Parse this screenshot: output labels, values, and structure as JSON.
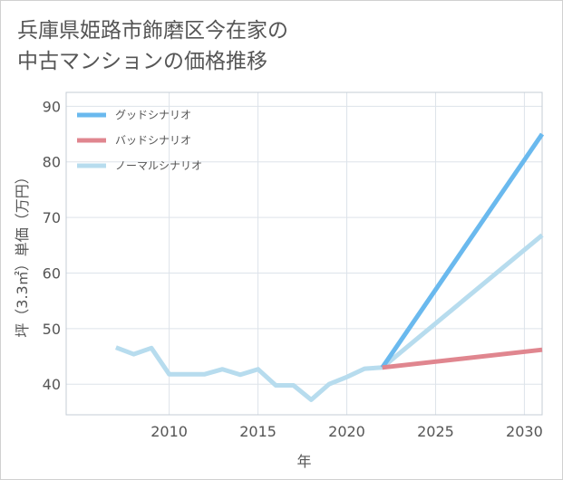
{
  "title_lines": [
    "兵庫県姫路市飾磨区今在家の",
    "中古マンションの価格推移"
  ],
  "chart_data": {
    "type": "line",
    "title": "兵庫県姫路市飾磨区今在家の中古マンションの価格推移",
    "xlabel": "年",
    "ylabel": "坪（3.3㎡）単価（万円）",
    "xlim": [
      2004.2,
      2031.0
    ],
    "ylim": [
      34.5,
      92.5
    ],
    "xticks": [
      2010,
      2015,
      2020,
      2025,
      2030
    ],
    "yticks": [
      40,
      50,
      60,
      70,
      80,
      90
    ],
    "grid": true,
    "legend_position": "top-left",
    "series": [
      {
        "name": "グッドシナリオ",
        "color": "#6ab9ee",
        "x": [
          2022,
          2031
        ],
        "values": [
          43.0,
          85.0
        ]
      },
      {
        "name": "バッドシナリオ",
        "color": "#e0868f",
        "x": [
          2022,
          2031
        ],
        "values": [
          43.0,
          46.2
        ]
      },
      {
        "name": "ノーマルシナリオ",
        "color": "#b7dcee",
        "x": [
          2007,
          2008,
          2009,
          2010,
          2011,
          2012,
          2013,
          2014,
          2015,
          2016,
          2017,
          2018,
          2019,
          2020,
          2021,
          2022,
          2031
        ],
        "values": [
          46.6,
          45.4,
          46.5,
          41.8,
          41.8,
          41.8,
          42.7,
          41.7,
          42.7,
          39.8,
          39.8,
          37.2,
          40.0,
          41.3,
          42.8,
          43.0,
          66.8
        ]
      }
    ]
  }
}
